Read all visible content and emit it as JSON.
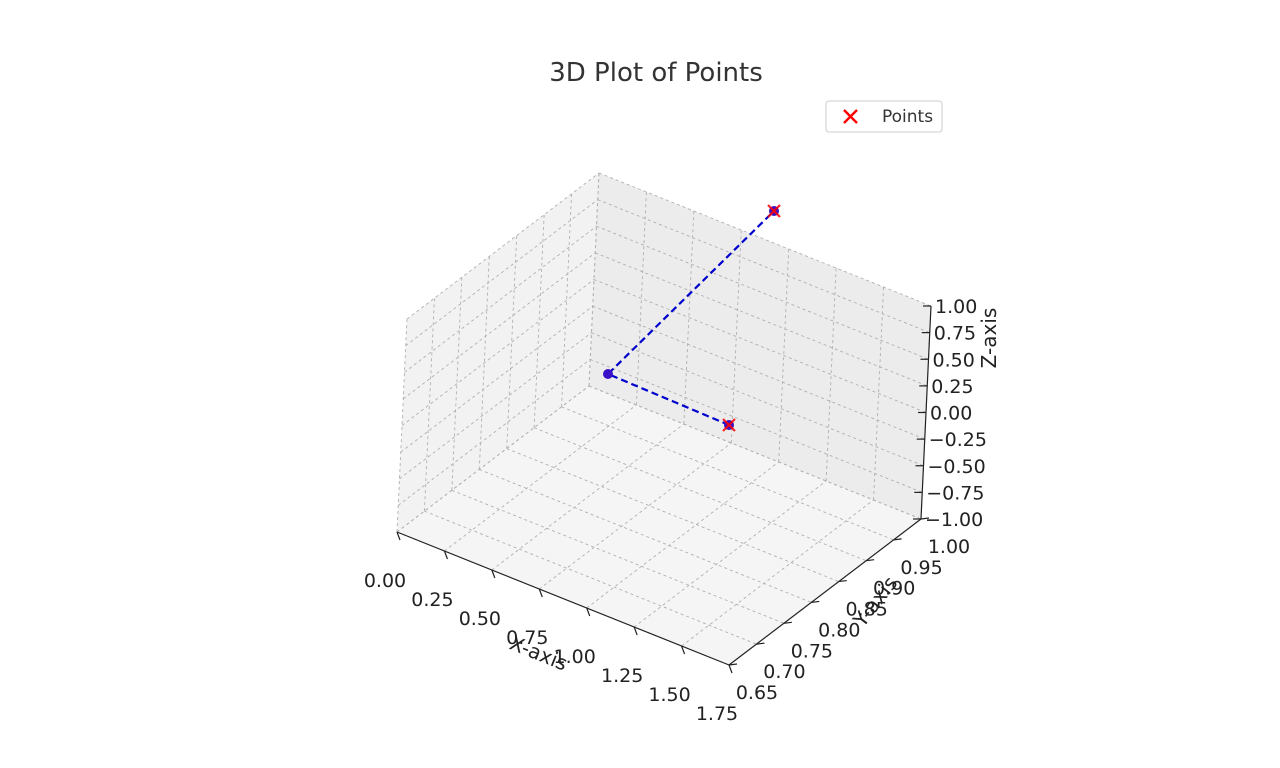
{
  "chart_data": {
    "type": "scatter",
    "title": "3D Plot of Points",
    "xlabel": "X-axis",
    "ylabel": "Y-axis",
    "zlabel": "Z-axis",
    "xlim": [
      0,
      1.75
    ],
    "ylim": [
      0.65,
      1.0
    ],
    "zlim": [
      -1.0,
      1.0
    ],
    "x_ticks": [
      "0.00",
      "0.25",
      "0.50",
      "0.75",
      "1.00",
      "1.25",
      "1.50",
      "1.75"
    ],
    "y_ticks": [
      "0.65",
      "0.70",
      "0.75",
      "0.80",
      "0.85",
      "0.90",
      "0.95",
      "1.00"
    ],
    "z_ticks": [
      "−1.00",
      "−0.75",
      "−0.50",
      "−0.25",
      "0.00",
      "0.25",
      "0.50",
      "0.75",
      "1.00"
    ],
    "grid": true,
    "legend": {
      "position": "top-right",
      "entries": [
        "Points"
      ]
    },
    "series": [
      {
        "name": "Points",
        "points": [
          {
            "x": 1.0,
            "y": 0.71,
            "z": -1.0
          },
          {
            "x": 1.0,
            "y": 1.0,
            "z": 1.0
          }
        ],
        "marker": "x",
        "color": "#ff0000"
      }
    ],
    "path": {
      "points": [
        {
          "x": 1.0,
          "y": 0.71,
          "z": -1.0
        },
        {
          "x": 0.0,
          "y": 1.0,
          "z": 0.0
        },
        {
          "x": 1.0,
          "y": 1.0,
          "z": 1.0
        }
      ],
      "style": "dashed",
      "color": "#0000cc",
      "marker_color": "#3a10c8"
    }
  }
}
